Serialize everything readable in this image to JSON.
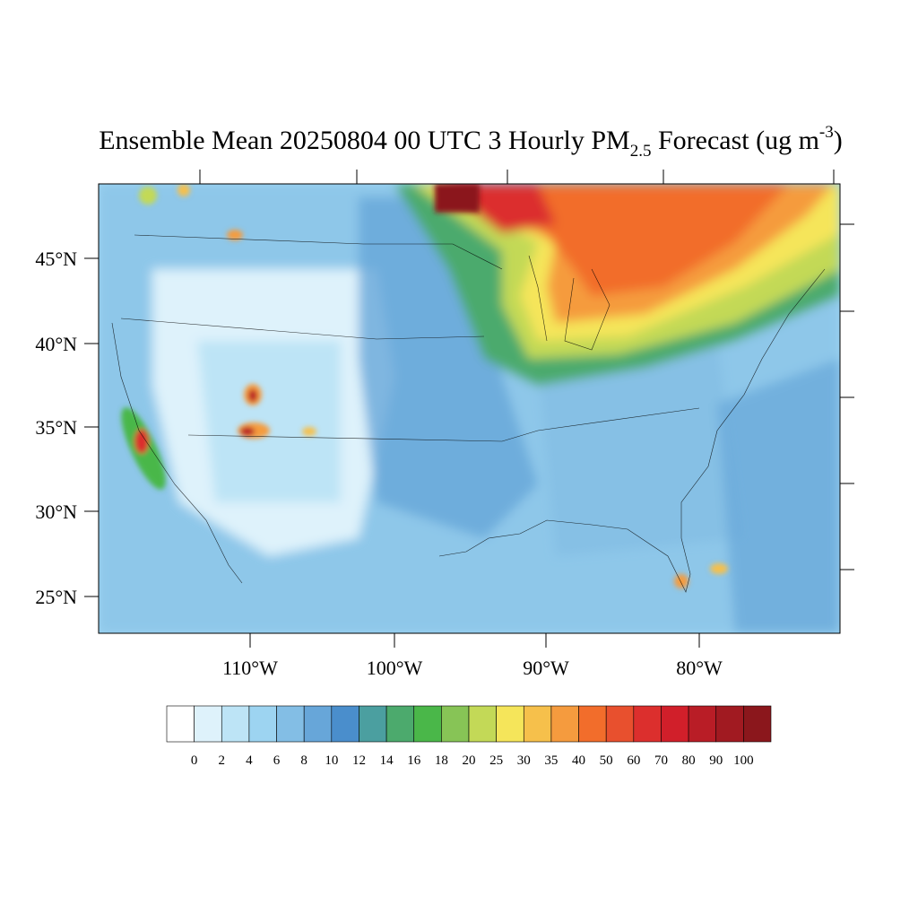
{
  "title": {
    "main": "Ensemble Mean 20250804 00 UTC 3 Hourly PM",
    "subscript": "2.5",
    "middle": " Forecast (ug m",
    "superscript": "-3",
    "end": ")"
  },
  "lat_labels": [
    "45°N",
    "40°N",
    "35°N",
    "30°N",
    "25°N"
  ],
  "lon_labels": [
    "110°W",
    "100°W",
    "90°W",
    "80°W"
  ],
  "colorbar": {
    "levels": [
      0,
      2,
      4,
      6,
      8,
      10,
      12,
      14,
      16,
      18,
      20,
      25,
      30,
      35,
      40,
      50,
      60,
      70,
      80,
      90,
      100
    ],
    "colors": [
      "#ffffff",
      "#def2fb",
      "#bde4f6",
      "#9dd4f1",
      "#83bee5",
      "#67a6d9",
      "#4a8ecc",
      "#4b9fa0",
      "#4caa6d",
      "#4ab749",
      "#87c456",
      "#c3d957",
      "#f5e55a",
      "#f6c04b",
      "#f59b3e",
      "#f26d2b",
      "#e8502e",
      "#dc2f2d",
      "#d11f2a",
      "#b91d26",
      "#a11a21",
      "#8b171c"
    ]
  }
}
